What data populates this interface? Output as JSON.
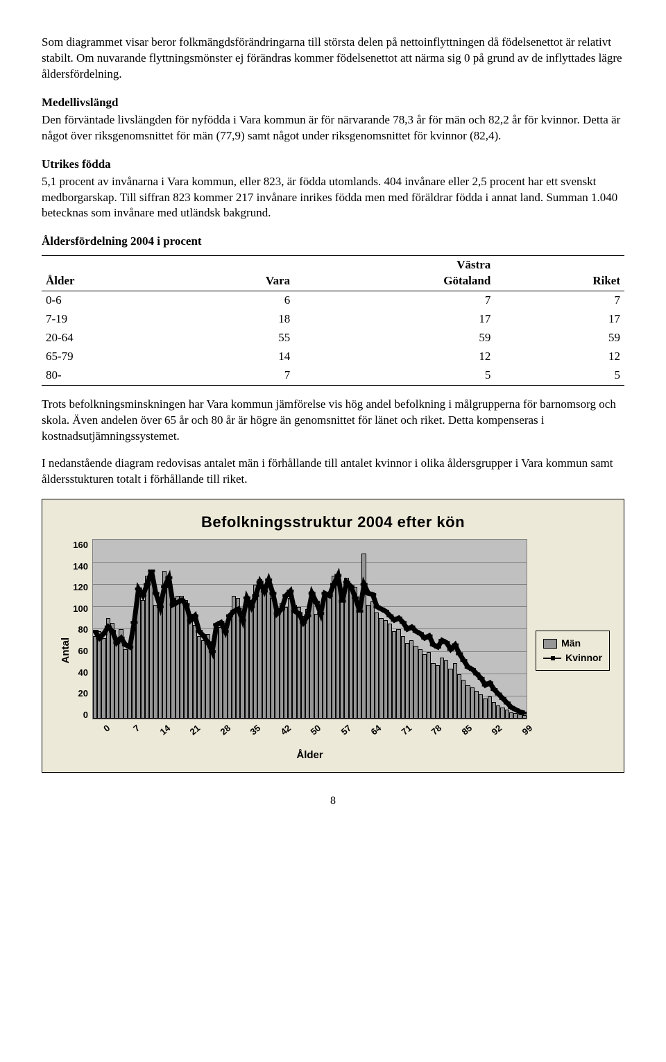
{
  "paragraphs": {
    "p1": "Som diagrammet visar beror folkmängdsförändringarna till största delen på nettoinflyttningen då födelsenettot är relativt stabilt. Om nuvarande flyttningsmönster ej förändras kommer födelsenettot att närma sig 0 på grund av de inflyttades lägre åldersfördelning.",
    "h1": "Medellivslängd",
    "p2": "Den förväntade livslängden för nyfödda i Vara kommun är för närvarande 78,3 år för män och 82,2 år för kvinnor. Detta är något över riksgenomsnittet för män (77,9) samt något under riksgenomsnittet för kvinnor (82,4).",
    "h2": "Utrikes födda",
    "p3": "5,1 procent av invånarna i Vara kommun, eller 823, är födda utomlands. 404 invånare eller 2,5 procent har ett svenskt medborgarskap. Till siffran 823 kommer 217 invånare inrikes födda men med föräldrar födda i annat land. Summan 1.040 betecknas som invånare med utländsk bakgrund.",
    "h3": "Åldersfördelning 2004 i procent",
    "p4": "Trots befolkningsminskningen har Vara kommun jämförelse vis hög andel befolkning i målgrupperna för barnomsorg och skola. Även andelen över 65 år och 80 år är högre än genomsnittet för länet och riket. Detta kompenseras i kostnadsutjämningssystemet.",
    "p5": "I nedanstående diagram redovisas antalet män i förhållande till antalet kvinnor i olika åldersgrupper i Vara kommun samt åldersstukturen totalt i förhållande till riket."
  },
  "table": {
    "columns": [
      "Ålder",
      "Vara",
      "Västra\nGötaland",
      "Riket"
    ],
    "rows": [
      [
        "0-6",
        "6",
        "7",
        "7"
      ],
      [
        "7-19",
        "18",
        "17",
        "17"
      ],
      [
        "20-64",
        "55",
        "59",
        "59"
      ],
      [
        "65-79",
        "14",
        "12",
        "12"
      ],
      [
        "80-",
        "7",
        "5",
        "5"
      ]
    ]
  },
  "chart": {
    "title": "Befolkningsstruktur 2004 efter kön",
    "ylabel": "Antal",
    "xlabel": "Ålder",
    "ylim": [
      0,
      160
    ],
    "ytick_step": 20,
    "yticks": [
      "160",
      "140",
      "120",
      "100",
      "80",
      "60",
      "40",
      "20",
      "0"
    ],
    "xticks": [
      "0",
      "7",
      "14",
      "21",
      "28",
      "35",
      "42",
      "50",
      "57",
      "64",
      "71",
      "78",
      "85",
      "92",
      "99"
    ],
    "legend": {
      "men": "Män",
      "women": "Kvinnor"
    },
    "bar_color": "#969696",
    "line_color": "#000000",
    "plot_bg": "#c0c0c0",
    "panel_bg": "#ece9d8",
    "grid_color": "#808080",
    "men": [
      74,
      78,
      72,
      90,
      86,
      70,
      80,
      62,
      68,
      82,
      112,
      106,
      128,
      130,
      102,
      106,
      132,
      122,
      108,
      110,
      110,
      106,
      94,
      84,
      74,
      70,
      76,
      68,
      80,
      82,
      86,
      94,
      110,
      108,
      96,
      110,
      106,
      120,
      125,
      116,
      118,
      108,
      98,
      104,
      100,
      108,
      102,
      100,
      92,
      98,
      114,
      94,
      100,
      110,
      112,
      128,
      120,
      105,
      126,
      120,
      118,
      100,
      148,
      102,
      105,
      95,
      90,
      88,
      85,
      78,
      80,
      74,
      68,
      70,
      65,
      62,
      58,
      60,
      50,
      48,
      55,
      52,
      45,
      50,
      40,
      35,
      30,
      28,
      25,
      22,
      18,
      20,
      15,
      12,
      10,
      8,
      6,
      5,
      4,
      3
    ],
    "women": [
      78,
      72,
      76,
      82,
      78,
      68,
      72,
      66,
      64,
      86,
      116,
      110,
      120,
      132,
      112,
      100,
      118,
      126,
      102,
      104,
      106,
      102,
      88,
      92,
      78,
      74,
      68,
      60,
      84,
      86,
      78,
      92,
      96,
      98,
      88,
      108,
      100,
      110,
      122,
      114,
      124,
      112,
      94,
      98,
      110,
      114,
      96,
      94,
      86,
      92,
      112,
      104,
      94,
      112,
      110,
      120,
      128,
      105,
      122,
      118,
      108,
      96,
      120,
      112,
      111,
      100,
      98,
      96,
      92,
      88,
      90,
      86,
      80,
      82,
      78,
      76,
      72,
      74,
      66,
      64,
      70,
      68,
      62,
      66,
      58,
      52,
      46,
      44,
      40,
      36,
      30,
      32,
      26,
      22,
      18,
      14,
      10,
      8,
      6,
      5
    ]
  },
  "pagenum": "8"
}
